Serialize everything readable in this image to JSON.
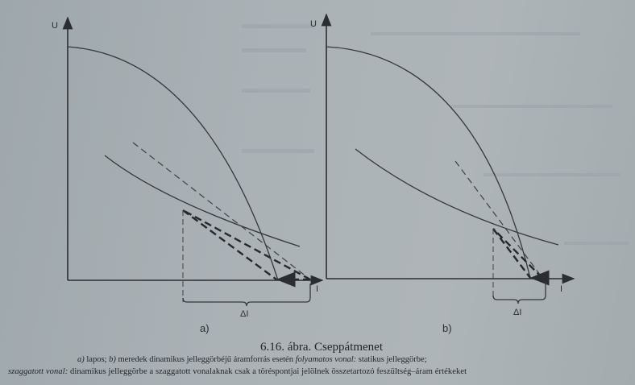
{
  "figure": {
    "panel_a": {
      "y_label": "U",
      "x_label": "I",
      "delta_label": "ΔI",
      "panel_label": "a)"
    },
    "panel_b": {
      "y_label": "U",
      "x_label": "I",
      "delta_label": "ΔI",
      "panel_label": "b)"
    }
  },
  "caption": {
    "title": "6.16. ábra. Cseppátmenet",
    "line1_a": "a)",
    "line1_b": " lapos; ",
    "line1_c": "b)",
    "line1_d": " meredek dinamikus jelleggörbéjű áramforrás esetén ",
    "line1_e": "folyamatos vonal:",
    "line1_f": " statikus jelleggörbe;",
    "line2_a": "szaggatott vonal:",
    "line2_b": " dinamikus  jelleggörbe a szaggatott vonalaknak csak a töréspontjai jelölnek összetartozó feszültség–áram értékeket"
  },
  "colors": {
    "paper": "#a8b0b4",
    "ink": "#2a2e32"
  }
}
